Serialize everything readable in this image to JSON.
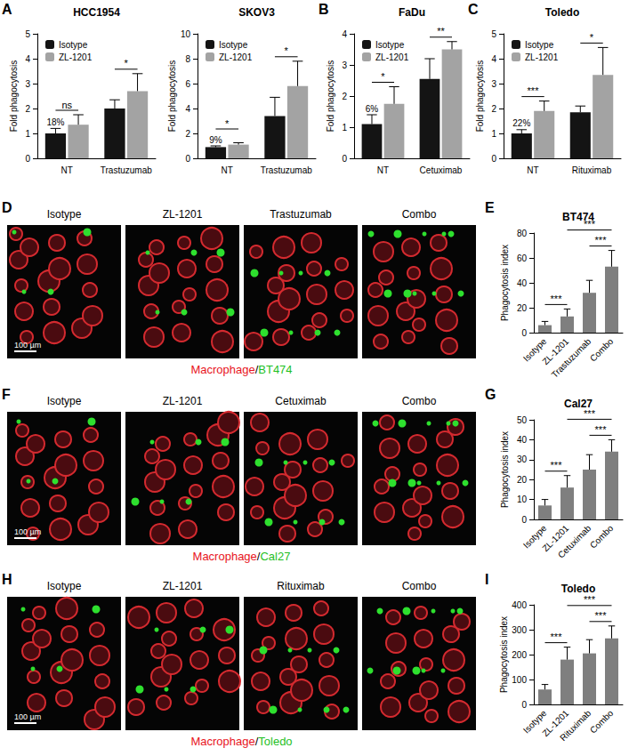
{
  "chart_data": [
    {
      "panel_label": "A",
      "type": "bar",
      "title": "HCC1954",
      "y_label": "Fold phagocytosis",
      "categories": [
        "NT",
        "Trastuzumab"
      ],
      "series": [
        {
          "name": "Isotype",
          "color": "#141414",
          "values": [
            1.0,
            2.0
          ],
          "errors": [
            0.2,
            0.35
          ]
        },
        {
          "name": "ZL-1201",
          "color": "#a3a3a3",
          "values": [
            1.35,
            2.7
          ],
          "errors": [
            0.4,
            0.7
          ]
        }
      ],
      "ylim": [
        0,
        5
      ],
      "yticks": [
        0,
        1,
        2,
        3,
        4,
        5
      ],
      "grid": false,
      "legend": "upper left",
      "annotations": [
        {
          "category": "NT",
          "series": "Isotype",
          "text": "18%"
        }
      ],
      "significance": [
        {
          "category": "NT",
          "text": "ns"
        },
        {
          "category": "Trastuzumab",
          "text": "*"
        }
      ]
    },
    {
      "type": "bar",
      "title": "SKOV3",
      "y_label": "Fold phagocytosis",
      "categories": [
        "NT",
        "Trastuzumab"
      ],
      "series": [
        {
          "name": "Isotype",
          "color": "#141414",
          "values": [
            0.9,
            3.4
          ],
          "errors": [
            0.1,
            1.5
          ]
        },
        {
          "name": "ZL-1201",
          "color": "#a3a3a3",
          "values": [
            1.1,
            5.8
          ],
          "errors": [
            0.15,
            2.0
          ]
        }
      ],
      "ylim": [
        0,
        10
      ],
      "yticks": [
        0,
        2,
        4,
        6,
        8,
        10
      ],
      "grid": false,
      "legend": "upper left",
      "annotations": [
        {
          "category": "NT",
          "series": "Isotype",
          "text": "9%"
        }
      ],
      "significance": [
        {
          "category": "NT",
          "text": "*"
        },
        {
          "category": "Trastuzumab",
          "text": "*"
        }
      ]
    },
    {
      "panel_label": "B",
      "type": "bar",
      "title": "FaDu",
      "y_label": "Fold phagocytosis",
      "categories": [
        "NT",
        "Cetuximab"
      ],
      "series": [
        {
          "name": "Isotype",
          "color": "#141414",
          "values": [
            1.1,
            2.55
          ],
          "errors": [
            0.3,
            0.65
          ]
        },
        {
          "name": "ZL-1201",
          "color": "#a3a3a3",
          "values": [
            1.75,
            3.5
          ],
          "errors": [
            0.55,
            0.25
          ]
        }
      ],
      "ylim": [
        0,
        4
      ],
      "yticks": [
        0,
        1,
        2,
        3,
        4
      ],
      "grid": false,
      "legend": "upper left",
      "annotations": [
        {
          "category": "NT",
          "series": "Isotype",
          "text": "6%"
        }
      ],
      "significance": [
        {
          "category": "NT",
          "text": "*"
        },
        {
          "category": "Cetuximab",
          "text": "**"
        }
      ]
    },
    {
      "panel_label": "C",
      "type": "bar",
      "title": "Toledo",
      "y_label": "Fold phagocytosis",
      "categories": [
        "NT",
        "Rituximab"
      ],
      "series": [
        {
          "name": "Isotype",
          "color": "#141414",
          "values": [
            1.0,
            1.85
          ],
          "errors": [
            0.15,
            0.25
          ]
        },
        {
          "name": "ZL-1201",
          "color": "#a3a3a3",
          "values": [
            1.9,
            3.35
          ],
          "errors": [
            0.4,
            1.1
          ]
        }
      ],
      "ylim": [
        0,
        5
      ],
      "yticks": [
        0,
        1,
        2,
        3,
        4,
        5
      ],
      "grid": false,
      "legend": "upper left",
      "annotations": [
        {
          "category": "NT",
          "series": "Isotype",
          "text": "22%"
        }
      ],
      "significance": [
        {
          "category": "NT",
          "text": "***"
        },
        {
          "category": "Rituximab",
          "text": "*"
        }
      ]
    },
    {
      "panel_label": "E",
      "type": "bar",
      "title": "BT474",
      "y_label": "Phagocytosis index",
      "categories": [
        "Isotype",
        "ZL-1201",
        "Trastuzumab",
        "Combo"
      ],
      "values": [
        6,
        13,
        32,
        53
      ],
      "errors": [
        3,
        6,
        10,
        13
      ],
      "color": "#7f7f7f",
      "ylim": [
        0,
        80
      ],
      "yticks": [
        0,
        20,
        40,
        60,
        80
      ],
      "grid": false,
      "significance": [
        {
          "from": "Isotype",
          "to": "ZL-1201",
          "text": "***"
        },
        {
          "from": "Trastuzumab",
          "to": "Combo",
          "text": "***"
        },
        {
          "from": "ZL-1201",
          "to": "Combo",
          "text": "***"
        }
      ]
    },
    {
      "panel_label": "G",
      "type": "bar",
      "title": "Cal27",
      "y_label": "Phagocytosis index",
      "categories": [
        "Isotype",
        "ZL-1201",
        "Cetuximab",
        "Combo"
      ],
      "values": [
        7,
        16,
        25,
        34
      ],
      "errors": [
        3,
        6,
        7.5,
        6
      ],
      "color": "#7f7f7f",
      "ylim": [
        0,
        50
      ],
      "yticks": [
        0,
        10,
        20,
        30,
        40,
        50
      ],
      "grid": false,
      "significance": [
        {
          "from": "Isotype",
          "to": "ZL-1201",
          "text": "***"
        },
        {
          "from": "Cetuximab",
          "to": "Combo",
          "text": "***"
        },
        {
          "from": "ZL-1201",
          "to": "Combo",
          "text": "***"
        }
      ]
    },
    {
      "panel_label": "I",
      "type": "bar",
      "title": "Toledo",
      "y_label": "Phagocytosis index",
      "categories": [
        "Isotype",
        "ZL-1201",
        "Rituximab",
        "Combo"
      ],
      "values": [
        60,
        180,
        205,
        265
      ],
      "errors": [
        20,
        50,
        55,
        50
      ],
      "color": "#7f7f7f",
      "ylim": [
        0,
        400
      ],
      "yticks": [
        0,
        100,
        200,
        300,
        400
      ],
      "grid": false,
      "significance": [
        {
          "from": "Isotype",
          "to": "ZL-1201",
          "text": "***"
        },
        {
          "from": "Rituximab",
          "to": "Combo",
          "text": "***"
        },
        {
          "from": "ZL-1201",
          "to": "Combo",
          "text": "***"
        }
      ]
    }
  ],
  "image_panels": [
    {
      "panel_label": "D",
      "images": [
        "Isotype",
        "ZL-1201",
        "Trastuzumab",
        "Combo"
      ],
      "scale_bar": "100 µm",
      "caption": [
        {
          "text": "Macrophage",
          "color": "#e8141c"
        },
        {
          "text": "/",
          "color": "#000000"
        },
        {
          "text": "BT474",
          "color": "#1fbf1f"
        }
      ]
    },
    {
      "panel_label": "F",
      "images": [
        "Isotype",
        "ZL-1201",
        "Cetuximab",
        "Combo"
      ],
      "scale_bar": "100 µm",
      "caption": [
        {
          "text": "Macrophage",
          "color": "#e8141c"
        },
        {
          "text": "/",
          "color": "#000000"
        },
        {
          "text": "Cal27",
          "color": "#1fbf1f"
        }
      ]
    },
    {
      "panel_label": "H",
      "images": [
        "Isotype",
        "ZL-1201",
        "Rituximab",
        "Combo"
      ],
      "scale_bar": "100 µm",
      "caption": [
        {
          "text": "Macrophage",
          "color": "#e8141c"
        },
        {
          "text": "/",
          "color": "#000000"
        },
        {
          "text": "Toledo",
          "color": "#1fbf1f"
        }
      ]
    }
  ]
}
